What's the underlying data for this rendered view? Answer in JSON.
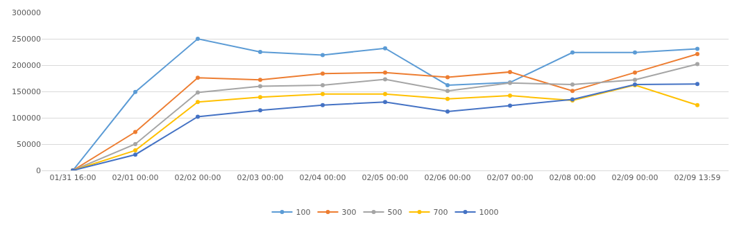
{
  "chart_data": {
    "type": "line",
    "categories": [
      "01/31 16:00",
      "02/01 00:00",
      "02/02 00:00",
      "02/03 00:00",
      "02/04 00:00",
      "02/05 00:00",
      "02/06 00:00",
      "02/07 00:00",
      "02/08 00:00",
      "02/09 00:00",
      "02/09 13:59"
    ],
    "series": [
      {
        "name": "100",
        "color": "#5b9bd5",
        "values": [
          0,
          149000,
          250000,
          225000,
          219000,
          232000,
          162000,
          167000,
          224000,
          224000,
          231000
        ]
      },
      {
        "name": "300",
        "color": "#ed7d31",
        "values": [
          0,
          73000,
          176000,
          172000,
          184000,
          186000,
          177000,
          187000,
          151000,
          186000,
          221000
        ]
      },
      {
        "name": "500",
        "color": "#a5a5a5",
        "values": [
          0,
          50000,
          148000,
          160000,
          162000,
          173000,
          151000,
          166000,
          163000,
          172000,
          202000
        ]
      },
      {
        "name": "700",
        "color": "#ffc000",
        "values": [
          0,
          38000,
          130000,
          139000,
          145000,
          145000,
          136000,
          142000,
          133000,
          162000,
          124000
        ]
      },
      {
        "name": "1000",
        "color": "#4472c4",
        "values": [
          0,
          30000,
          102000,
          114000,
          124000,
          130000,
          112000,
          123000,
          135000,
          163000,
          164000
        ]
      }
    ],
    "ylim": [
      0,
      300000
    ],
    "yticks": [
      0,
      50000,
      100000,
      150000,
      200000,
      250000,
      300000
    ],
    "grid": "y",
    "legend": "bottom",
    "marker": "circle",
    "line_style": "solid"
  }
}
